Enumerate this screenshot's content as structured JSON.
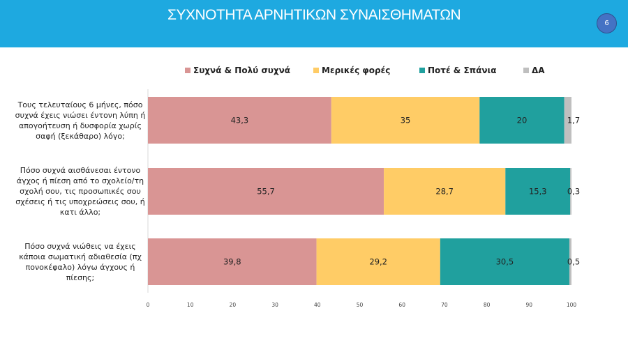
{
  "header": {
    "title": "ΣΥΧΝΟΤΗΤΑ ΑΡΝΗΤΙΚΩΝ ΣΥΝΑΙΣΘΗΜΑΤΩΝ",
    "page_number": "6"
  },
  "chart_data": {
    "type": "bar",
    "orientation": "horizontal",
    "stacked": true,
    "categories": [
      "Τους τελευταίους 6 μήνες, πόσο συχνά  έχεις νιώσει έντονη λύπη ή απογοήτευση  ή δυσφορία χωρίς σαφή (ξεκάθαρο) λόγο;",
      "Πόσο συχνά αισθάνεσαι έντονο άγχος ή πίεση από το σχολείο/τη σχολή σου, τις προσωπικές σου σχέσεις ή τις υποχρεώσεις σου, ή κατι άλλο;",
      "Πόσο συχνά νιώθεις να έχεις κάποια σωματική αδιαθεσία (πχ πονοκέφαλο) λόγω  άγχους ή πίεσης;"
    ],
    "series": [
      {
        "name": "Συχνά & Πολύ συχνά",
        "color": "#D99594",
        "values": [
          43.3,
          55.7,
          39.8
        ],
        "labels": [
          "43,3",
          "55,7",
          "39,8"
        ]
      },
      {
        "name": "Μερικές φορές",
        "color": "#FFCC66",
        "values": [
          35,
          28.7,
          29.2
        ],
        "labels": [
          "35",
          "28,7",
          "29,2"
        ]
      },
      {
        "name": "Ποτέ & Σπάνια",
        "color": "#20A09E",
        "values": [
          20,
          15.3,
          30.5
        ],
        "labels": [
          "20",
          "15,3",
          "30,5"
        ]
      },
      {
        "name": "ΔΑ",
        "color": "#BFBFBF",
        "values": [
          1.7,
          0.3,
          0.5
        ],
        "labels": [
          "1,7",
          "0,3",
          "0,5"
        ]
      }
    ],
    "xlim": [
      0,
      100
    ],
    "xticks": [
      "0",
      "10",
      "20",
      "30",
      "40",
      "50",
      "60",
      "70",
      "80",
      "90",
      "100"
    ],
    "legend_position": "top",
    "grid": false
  }
}
